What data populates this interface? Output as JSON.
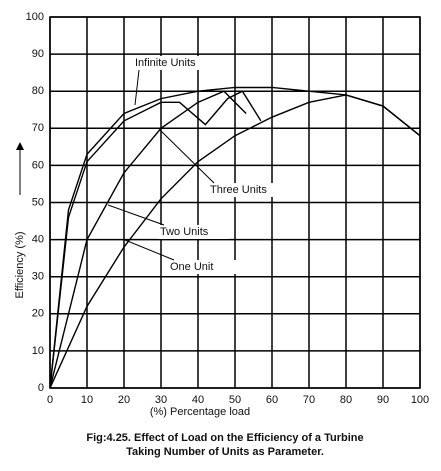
{
  "chart_data": {
    "type": "line",
    "xlabel": "(%) Percentage load",
    "ylabel": "Efficiency (%)",
    "caption": [
      "Fig:4.25. Effect of Load on the Efficiency of a Turbine",
      "Taking Number of Units as Parameter."
    ],
    "xlim": [
      0,
      100
    ],
    "ylim": [
      0,
      100
    ],
    "xticks": [
      0,
      10,
      20,
      30,
      40,
      50,
      60,
      70,
      80,
      90,
      100
    ],
    "yticks": [
      0,
      10,
      20,
      30,
      40,
      50,
      60,
      70,
      80,
      90,
      100
    ],
    "grid": true,
    "series": [
      {
        "name": "Infinite Units",
        "color": "#000000",
        "x": [
          0,
          5,
          10,
          20,
          30,
          40,
          50,
          60,
          70,
          80,
          90,
          100
        ],
        "values": [
          0,
          48,
          63,
          74,
          78,
          80,
          81,
          81,
          80,
          79,
          76,
          68
        ]
      },
      {
        "name": "Three Units",
        "color": "#000000",
        "x": [
          0,
          5,
          10,
          20,
          30,
          35,
          42,
          48,
          52,
          57
        ],
        "values": [
          0,
          46,
          61,
          72,
          77,
          77,
          71,
          78,
          80,
          72
        ]
      },
      {
        "name": "Two Units",
        "color": "#000000",
        "x": [
          0,
          10,
          20,
          30,
          40,
          47,
          53
        ],
        "values": [
          0,
          40,
          58,
          70,
          77,
          80,
          74
        ]
      },
      {
        "name": "One Unit",
        "color": "#000000",
        "x": [
          0,
          10,
          20,
          30,
          40,
          50,
          60,
          70,
          80,
          90,
          100
        ],
        "values": [
          0,
          22,
          38,
          51,
          61,
          68,
          73,
          77,
          79,
          76,
          68
        ]
      }
    ]
  }
}
